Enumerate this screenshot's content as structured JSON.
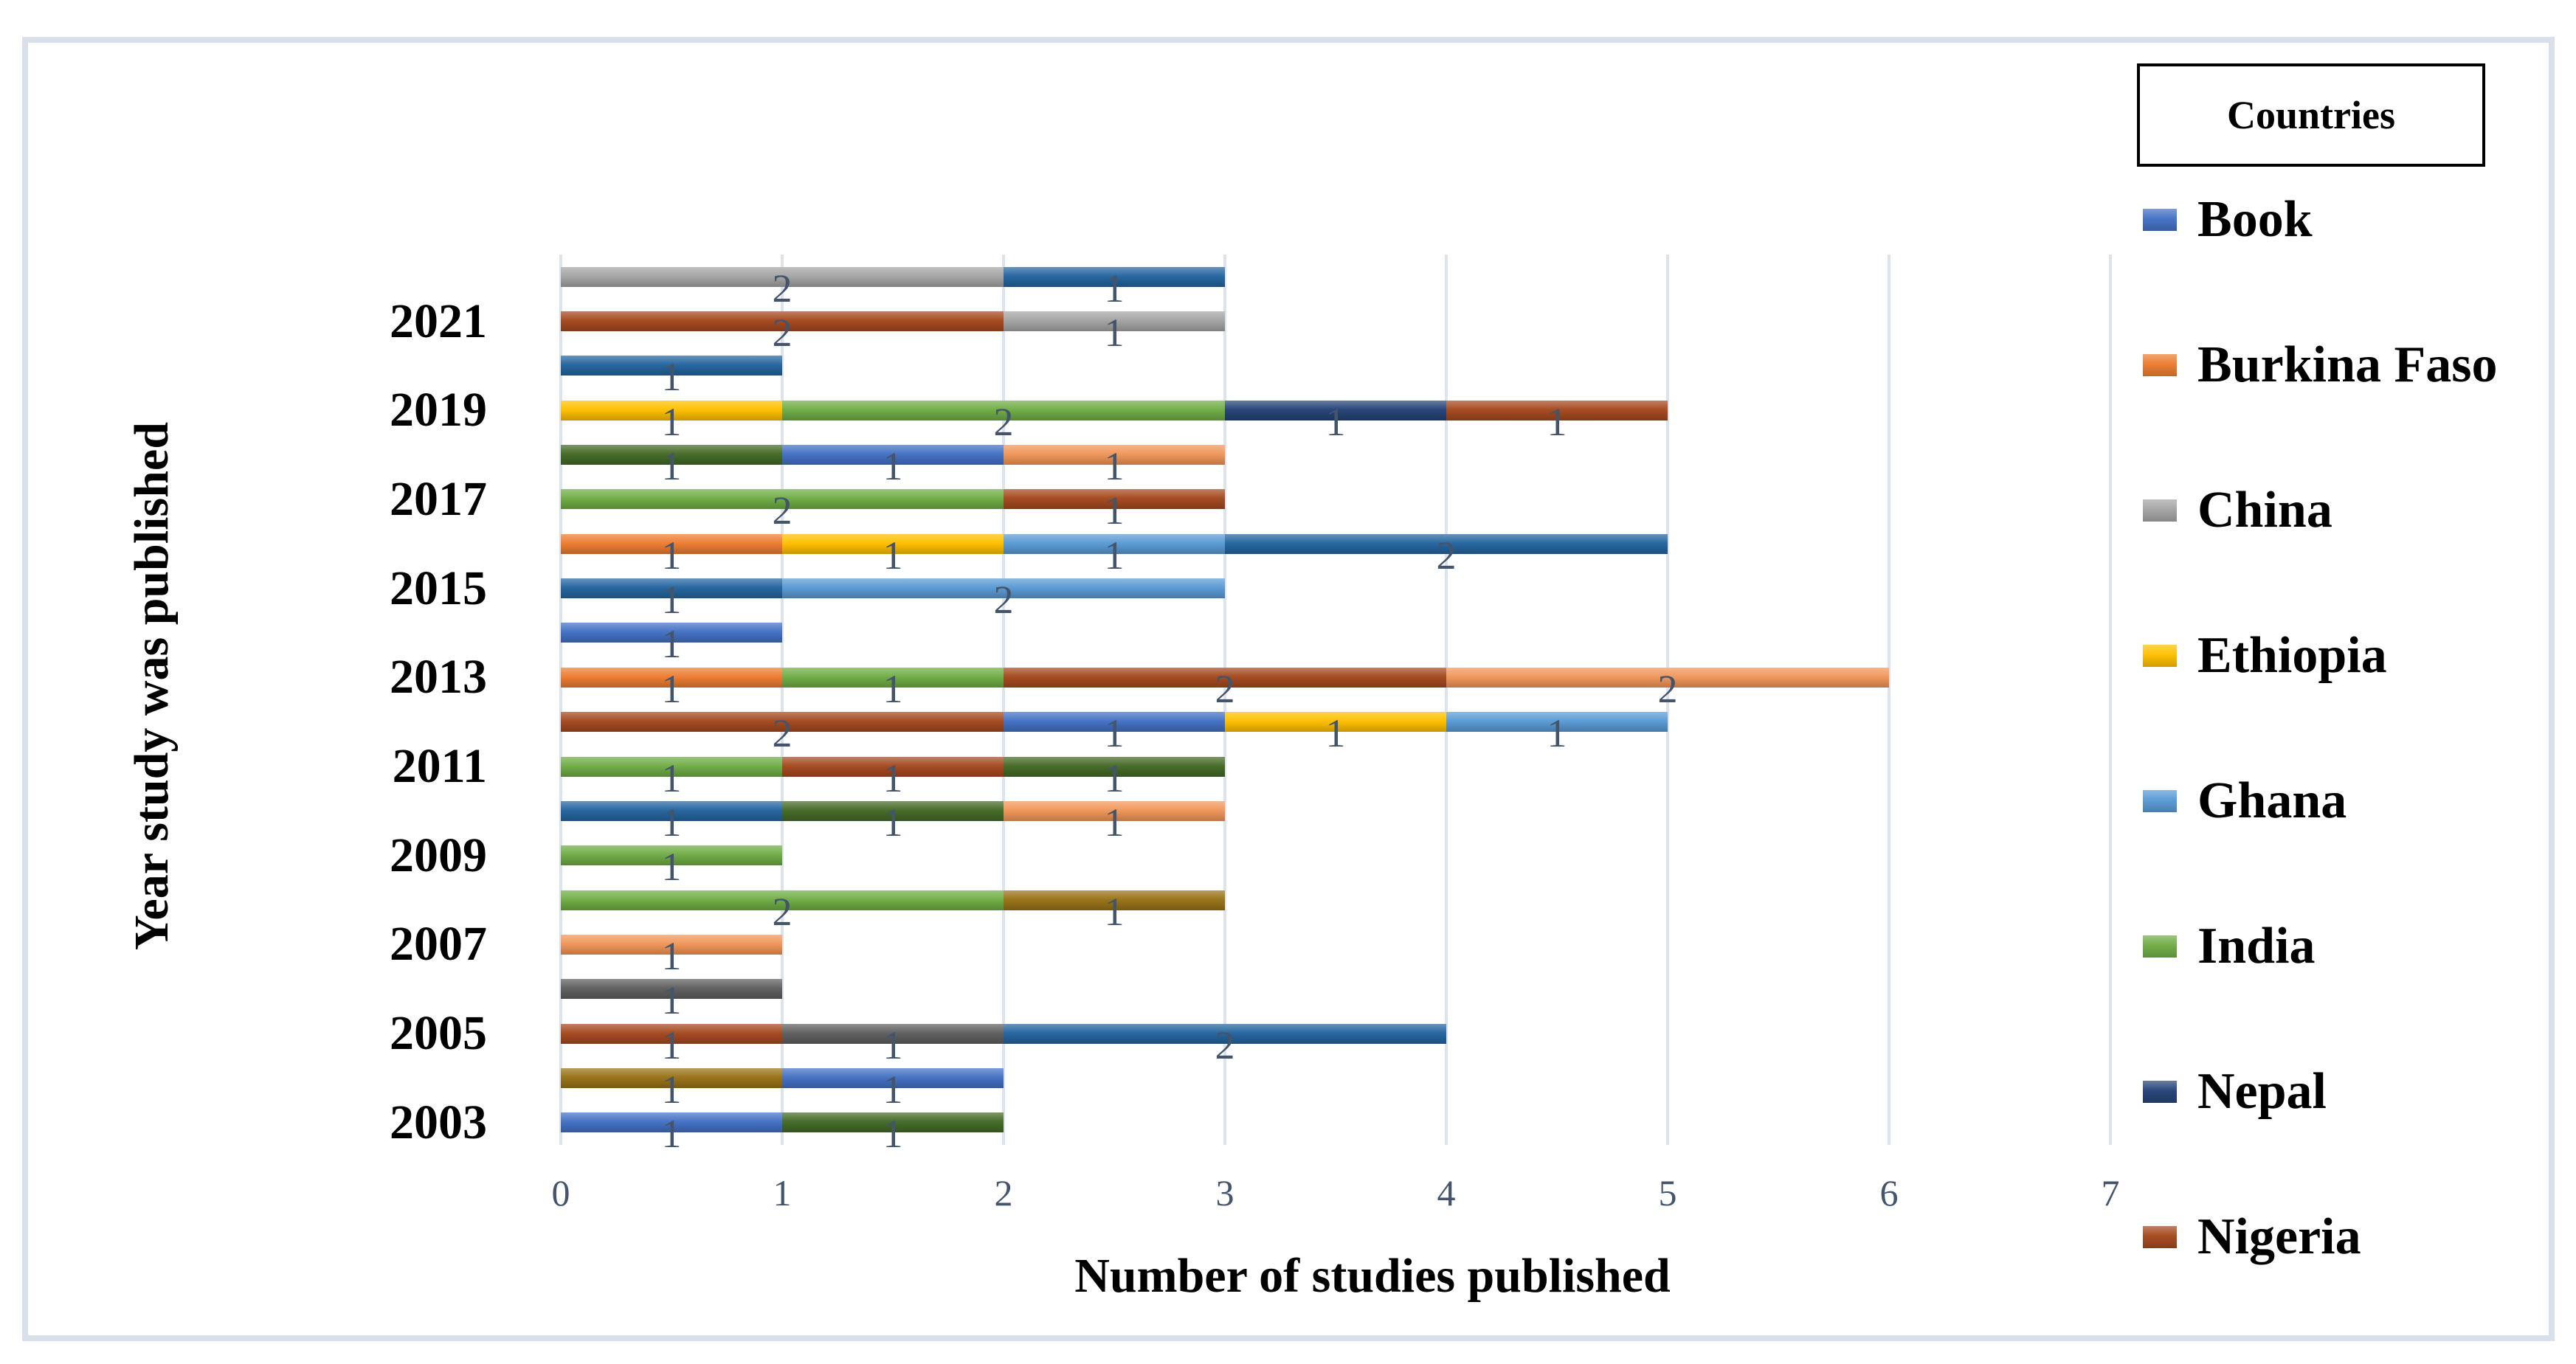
{
  "figure": {
    "frame_color": "#D9E0E9",
    "gridline_color": "#DCE3ED",
    "x_axis": {
      "title": "Number of studies published",
      "ticks": [
        "0",
        "1",
        "2",
        "3",
        "4",
        "5",
        "6",
        "7"
      ],
      "range": [
        0,
        7
      ]
    },
    "y_axis": {
      "title": "Year study was published",
      "visible_tick_labels": [
        "2021",
        "2019",
        "2017",
        "2015",
        "2013",
        "2011",
        "2009",
        "2007",
        "2005",
        "2003"
      ]
    },
    "legend": {
      "title": "Countries",
      "items": [
        {
          "label": "Book",
          "series": "book"
        },
        {
          "label": "Burkina Faso",
          "series": "burkina_faso"
        },
        {
          "label": "China",
          "series": "china"
        },
        {
          "label": "Ethiopia",
          "series": "ethiopia"
        },
        {
          "label": "Ghana",
          "series": "ghana"
        },
        {
          "label": "India",
          "series": "india"
        },
        {
          "label": "Nepal",
          "series": "nepal"
        },
        {
          "label": "Nigeria",
          "series": "nigeria"
        }
      ]
    }
  },
  "chart_data": {
    "type": "bar",
    "orientation": "horizontal",
    "stacked": true,
    "grid": true,
    "value_labels_shown": true,
    "value_label_color": "#44546A",
    "xlabel": "Number of studies published",
    "ylabel": "Year study was published",
    "xlim": [
      0,
      7
    ],
    "series_colors": {
      "book": "#4472C4",
      "burkina_faso": "#ED7D31",
      "china": "#A5A5A5",
      "ethiopia": "#FFC000",
      "ghana": "#5B9BD5",
      "india": "#70AD47",
      "nepal": "#264478",
      "nigeria": "#A54A20",
      "dark_gray": "#606060",
      "dark_yellow": "#997318",
      "dark_blue": "#2566A0",
      "dark_green": "#456B28",
      "light_orange": "#F1975A"
    },
    "rows": [
      {
        "year": "2022",
        "axis_label": "",
        "segments": [
          [
            "china",
            2
          ],
          [
            "dark_blue",
            1
          ]
        ]
      },
      {
        "year": "2021",
        "axis_label": "2021",
        "segments": [
          [
            "nigeria",
            2
          ],
          [
            "china",
            1
          ]
        ]
      },
      {
        "year": "2020",
        "axis_label": "",
        "segments": [
          [
            "dark_blue",
            1
          ]
        ]
      },
      {
        "year": "2019",
        "axis_label": "2019",
        "segments": [
          [
            "ethiopia",
            1
          ],
          [
            "india",
            2
          ],
          [
            "nepal",
            1
          ],
          [
            "nigeria",
            1
          ]
        ]
      },
      {
        "year": "2018",
        "axis_label": "",
        "segments": [
          [
            "dark_green",
            1
          ],
          [
            "book",
            1
          ],
          [
            "light_orange",
            1
          ]
        ]
      },
      {
        "year": "2017",
        "axis_label": "2017",
        "segments": [
          [
            "india",
            2
          ],
          [
            "nigeria",
            1
          ]
        ]
      },
      {
        "year": "2016",
        "axis_label": "",
        "segments": [
          [
            "burkina_faso",
            1
          ],
          [
            "ethiopia",
            1
          ],
          [
            "ghana",
            1
          ],
          [
            "dark_blue",
            2
          ]
        ]
      },
      {
        "year": "2015",
        "axis_label": "2015",
        "segments": [
          [
            "dark_blue",
            1
          ],
          [
            "ghana",
            2
          ]
        ]
      },
      {
        "year": "2014",
        "axis_label": "",
        "segments": [
          [
            "book",
            1
          ]
        ]
      },
      {
        "year": "2013",
        "axis_label": "2013",
        "segments": [
          [
            "burkina_faso",
            1
          ],
          [
            "india",
            1
          ],
          [
            "nigeria",
            2
          ],
          [
            "light_orange",
            2
          ]
        ]
      },
      {
        "year": "2012",
        "axis_label": "",
        "segments": [
          [
            "nigeria",
            2
          ],
          [
            "book",
            1
          ],
          [
            "ethiopia",
            1
          ],
          [
            "ghana",
            1
          ]
        ]
      },
      {
        "year": "2011",
        "axis_label": "2011",
        "segments": [
          [
            "india",
            1
          ],
          [
            "nigeria",
            1
          ],
          [
            "dark_green",
            1
          ]
        ]
      },
      {
        "year": "2010",
        "axis_label": "",
        "segments": [
          [
            "dark_blue",
            1
          ],
          [
            "dark_green",
            1
          ],
          [
            "light_orange",
            1
          ]
        ]
      },
      {
        "year": "2009",
        "axis_label": "2009",
        "segments": [
          [
            "india",
            1
          ]
        ]
      },
      {
        "year": "2008",
        "axis_label": "",
        "segments": [
          [
            "india",
            2
          ],
          [
            "dark_yellow",
            1
          ]
        ]
      },
      {
        "year": "2007",
        "axis_label": "2007",
        "segments": [
          [
            "light_orange",
            1
          ]
        ]
      },
      {
        "year": "2006",
        "axis_label": "",
        "segments": [
          [
            "dark_gray",
            1
          ]
        ]
      },
      {
        "year": "2005",
        "axis_label": "2005",
        "segments": [
          [
            "nigeria",
            1
          ],
          [
            "dark_gray",
            1
          ],
          [
            "dark_blue",
            2
          ]
        ]
      },
      {
        "year": "2004",
        "axis_label": "",
        "segments": [
          [
            "dark_yellow",
            1
          ],
          [
            "book",
            1
          ]
        ]
      },
      {
        "year": "2003",
        "axis_label": "2003",
        "segments": [
          [
            "book",
            1
          ],
          [
            "dark_green",
            1
          ]
        ]
      }
    ]
  }
}
